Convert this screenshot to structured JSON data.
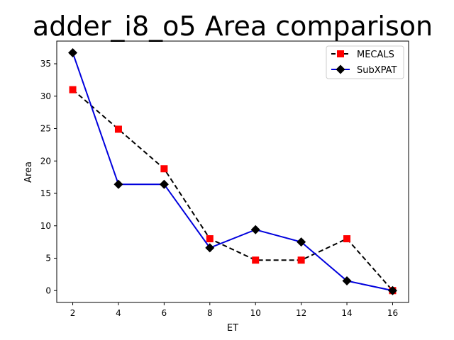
{
  "chart_data": {
    "type": "line",
    "title": "adder_i8_o5 Area comparison",
    "xlabel": "ET",
    "ylabel": "Area",
    "x": [
      2,
      4,
      6,
      8,
      10,
      12,
      14,
      16
    ],
    "xlim": [
      1.3,
      16.7
    ],
    "ylim": [
      -1.83,
      38.5
    ],
    "xticks": [
      2,
      4,
      6,
      8,
      10,
      12,
      14,
      16
    ],
    "yticks": [
      0,
      5,
      10,
      15,
      20,
      25,
      30,
      35
    ],
    "grid": false,
    "legend_position": "top-right",
    "series": [
      {
        "name": "MECALS",
        "values": [
          31,
          24.9,
          18.8,
          8.0,
          4.7,
          4.7,
          8.0,
          0
        ],
        "line_color": "#000000",
        "marker_color": "#ff0000",
        "line_style": "dashed",
        "marker": "square"
      },
      {
        "name": "SubXPAT",
        "values": [
          36.7,
          16.4,
          16.4,
          6.6,
          9.4,
          7.5,
          1.5,
          0
        ],
        "line_color": "#0000dd",
        "marker_color": "#000000",
        "line_style": "solid",
        "marker": "diamond"
      }
    ]
  }
}
